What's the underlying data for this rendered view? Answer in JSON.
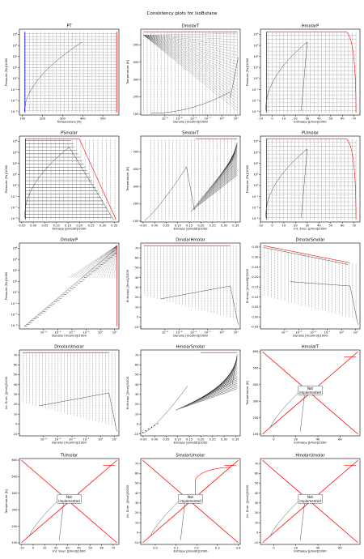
{
  "suptitle": "Consistency plots for IsoButane",
  "notimpl_line1": "Not",
  "notimpl_line2": "implemented",
  "colors": {
    "bubble": "#0000ff",
    "dew": "#ff0000",
    "iso": "#000000",
    "series": "#333333"
  },
  "chart_data": [
    {
      "type": "line",
      "title": "PT",
      "xlabel": "Temperature [K]",
      "ylabel": "Pressure [Pa]/1000",
      "xlim": [
        85,
        580
      ],
      "xscale": "linear",
      "xticks": [
        100,
        200,
        300,
        400,
        500
      ],
      "ylim": [
        0.0005,
        30000
      ],
      "yscale": "log",
      "yticks": [
        0.001,
        0.01,
        0.1,
        1,
        10,
        100,
        1000,
        10000
      ],
      "ytick_labels": [
        "10⁻³",
        "10⁻²",
        "10⁻¹",
        "10⁰",
        "10¹",
        "10²",
        "10³",
        "10⁴"
      ],
      "pattern": "pt"
    },
    {
      "type": "line",
      "title": "DmolarT",
      "xlabel": "Density [mol/m3]/1000",
      "ylabel": "Temperature [K]",
      "xlim": [
        2e-06,
        20
      ],
      "xscale": "log",
      "xticks": [
        0.0001,
        0.001,
        0.01,
        0.1,
        1,
        10
      ],
      "xtick_labels": [
        "10⁻⁴",
        "10⁻³",
        "10⁻²",
        "10⁻¹",
        "10⁰",
        "10¹"
      ],
      "ylim": [
        95,
        590
      ],
      "yscale": "linear",
      "yticks": [
        100,
        200,
        300,
        400,
        500
      ],
      "pattern": "dmolart"
    },
    {
      "type": "line",
      "title": "HmolarP",
      "xlabel": "Enthalpy [J/mol]/1000",
      "ylabel": "Pressure [Pa]/1000",
      "xlim": [
        -10,
        75
      ],
      "xscale": "linear",
      "xticks": [
        -10,
        0,
        10,
        20,
        30,
        40,
        50,
        60,
        70
      ],
      "ylim": [
        0.0005,
        30000
      ],
      "yscale": "log",
      "yticks": [
        0.001,
        0.01,
        0.1,
        1,
        10,
        100,
        1000,
        10000
      ],
      "ytick_labels": [
        "10⁻³",
        "10⁻²",
        "10⁻¹",
        "10⁰",
        "10¹",
        "10²",
        "10³",
        "10⁴"
      ],
      "pattern": "hp"
    },
    {
      "type": "line",
      "title": "PSmolar",
      "xlabel": "Entropy [J/mol/K]/1000",
      "ylabel": "Pressure [Pa]/1000",
      "xlim": [
        -0.06,
        0.37
      ],
      "xscale": "linear",
      "xticks": [
        -0.05,
        0.0,
        0.05,
        0.1,
        0.15,
        0.2,
        0.25,
        0.3,
        0.35
      ],
      "xtick_labels": [
        "-0.05",
        "0.00",
        "0.05",
        "0.10",
        "0.15",
        "0.20",
        "0.25",
        "0.30",
        "0.35"
      ],
      "ylim": [
        0.0005,
        30000
      ],
      "yscale": "log",
      "yticks": [
        0.001,
        0.01,
        0.1,
        1,
        10,
        100,
        1000,
        10000
      ],
      "ytick_labels": [
        "10⁻³",
        "10⁻²",
        "10⁻¹",
        "10⁰",
        "10¹",
        "10²",
        "10³",
        "10⁴"
      ],
      "pattern": "ps"
    },
    {
      "type": "line",
      "title": "SmolarT",
      "xlabel": "Entropy [J/mol/K]/1000",
      "ylabel": "Temperature [K]",
      "xlim": [
        -0.06,
        0.37
      ],
      "xscale": "linear",
      "xticks": [
        -0.05,
        0.0,
        0.05,
        0.1,
        0.15,
        0.2,
        0.25,
        0.3,
        0.35
      ],
      "xtick_labels": [
        "-0.05",
        "0.00",
        "0.05",
        "0.10",
        "0.15",
        "0.20",
        "0.25",
        "0.30",
        "0.35"
      ],
      "ylim": [
        95,
        590
      ],
      "yscale": "linear",
      "yticks": [
        100,
        200,
        300,
        400,
        500
      ],
      "pattern": "st"
    },
    {
      "type": "line",
      "title": "PUmolar",
      "xlabel": "Int. Ener. [J/mol]/1000",
      "ylabel": "Pressure [Pa]/1000",
      "xlim": [
        -10,
        75
      ],
      "xscale": "linear",
      "xticks": [
        -10,
        0,
        10,
        20,
        30,
        40,
        50,
        60,
        70
      ],
      "ylim": [
        0.0005,
        30000
      ],
      "yscale": "log",
      "yticks": [
        0.001,
        0.01,
        0.1,
        1,
        10,
        100,
        1000,
        10000
      ],
      "ytick_labels": [
        "10⁻³",
        "10⁻²",
        "10⁻¹",
        "10⁰",
        "10¹",
        "10²",
        "10³",
        "10⁴"
      ],
      "pattern": "hp"
    },
    {
      "type": "line",
      "title": "DmolarP",
      "xlabel": "Density [mol/m3]/1000",
      "ylabel": "Pressure [Pa]/1000",
      "xlim": [
        2e-06,
        20
      ],
      "xscale": "log",
      "xticks": [
        0.0001,
        0.001,
        0.01,
        0.1,
        1,
        10
      ],
      "xtick_labels": [
        "10⁻⁴",
        "10⁻³",
        "10⁻²",
        "10⁻¹",
        "10⁰",
        "10¹"
      ],
      "ylim": [
        0.0005,
        30000
      ],
      "yscale": "log",
      "yticks": [
        0.001,
        0.01,
        0.1,
        1,
        10,
        100,
        1000,
        10000
      ],
      "ytick_labels": [
        "10⁻³",
        "10⁻²",
        "10⁻¹",
        "10⁰",
        "10¹",
        "10²",
        "10³",
        "10⁴"
      ],
      "pattern": "dp"
    },
    {
      "type": "line",
      "title": "DmolarHmolar",
      "xlabel": "Density [mol/m3]/1000",
      "ylabel": "Enthalpy [J/mol]/1000",
      "xlim": [
        2e-06,
        20
      ],
      "xscale": "log",
      "xticks": [
        0.0001,
        0.001,
        0.01,
        0.1,
        1,
        10
      ],
      "xtick_labels": [
        "10⁻⁴",
        "10⁻³",
        "10⁻²",
        "10⁻¹",
        "10⁰",
        "10¹"
      ],
      "ylim": [
        -12,
        75
      ],
      "yscale": "linear",
      "yticks": [
        -10,
        0,
        10,
        20,
        30,
        40,
        50,
        60,
        70
      ],
      "pattern": "dh"
    },
    {
      "type": "line",
      "title": "DmolarSmolar",
      "xlabel": "Density [mol/m3]/1000",
      "ylabel": "Entropy [J/mol/K]/1000",
      "xlim": [
        2e-06,
        20
      ],
      "xscale": "log",
      "xticks": [
        0.0001,
        0.001,
        0.01,
        0.1,
        1,
        10
      ],
      "xtick_labels": [
        "10⁻⁴",
        "10⁻³",
        "10⁻²",
        "10⁻¹",
        "10⁰",
        "10¹"
      ],
      "ylim": [
        -0.06,
        0.37
      ],
      "yscale": "linear",
      "yticks": [
        -0.05,
        0.0,
        0.05,
        0.1,
        0.15,
        0.2,
        0.25,
        0.3,
        0.35
      ],
      "ytick_labels": [
        "-0.05",
        "0.00",
        "0.05",
        "0.10",
        "0.15",
        "0.20",
        "0.25",
        "0.30",
        "0.35"
      ],
      "pattern": "ds"
    },
    {
      "type": "line",
      "title": "DmolarUmolar",
      "xlabel": "Density [mol/m3]/1000",
      "ylabel": "Int. Ener. [J/mol]/1000",
      "xlim": [
        2e-06,
        20
      ],
      "xscale": "log",
      "xticks": [
        0.0001,
        0.001,
        0.01,
        0.1,
        1,
        10
      ],
      "xtick_labels": [
        "10⁻⁴",
        "10⁻³",
        "10⁻²",
        "10⁻¹",
        "10⁰",
        "10¹"
      ],
      "ylim": [
        -12,
        75
      ],
      "yscale": "linear",
      "yticks": [
        -10,
        0,
        10,
        20,
        30,
        40,
        50,
        60,
        70
      ],
      "pattern": "dh"
    },
    {
      "type": "line",
      "title": "HmolarSmolar",
      "xlabel": "Entropy [J/mol/K]/1000",
      "ylabel": "Enthalpy [J/mol]/1000",
      "xlim": [
        -0.06,
        0.37
      ],
      "xscale": "linear",
      "xticks": [
        -0.05,
        0.0,
        0.05,
        0.1,
        0.15,
        0.2,
        0.25,
        0.3,
        0.35
      ],
      "xtick_labels": [
        "-0.05",
        "0.00",
        "0.05",
        "0.10",
        "0.15",
        "0.20",
        "0.25",
        "0.30",
        "0.35"
      ],
      "ylim": [
        -12,
        75
      ],
      "yscale": "linear",
      "yticks": [
        -10,
        0,
        10,
        20,
        30,
        40,
        50,
        60,
        70
      ],
      "pattern": "hs"
    },
    {
      "type": "line",
      "title": "HmolarT",
      "xlabel": "Enthalpy [J/mol]/1000",
      "ylabel": "Temperature [K]",
      "xlim": [
        -12,
        78
      ],
      "xscale": "linear",
      "xticks": [
        0,
        20,
        40,
        60
      ],
      "ylim": [
        90,
        610
      ],
      "yscale": "linear",
      "yticks": [
        100,
        200,
        300,
        400,
        500,
        600
      ],
      "pattern": "notimpl"
    },
    {
      "type": "line",
      "title": "TUmolar",
      "xlabel": "Int. Ener. [J/mol]/1000",
      "ylabel": "Temperature [K]",
      "xlim": [
        -12,
        75
      ],
      "xscale": "linear",
      "xticks": [
        -10,
        0,
        10,
        20,
        30,
        40,
        50,
        60,
        70
      ],
      "ylim": [
        90,
        610
      ],
      "yscale": "linear",
      "yticks": [
        100,
        200,
        300,
        400,
        500,
        600
      ],
      "pattern": "notimpl"
    },
    {
      "type": "line",
      "title": "SmolarUmolar",
      "xlabel": "Entropy [J/mol/K]/1000",
      "ylabel": "Int. Ener. [J/mol]/1000",
      "xlim": [
        -0.07,
        0.41
      ],
      "xscale": "linear",
      "xticks": [
        0.0,
        0.1,
        0.2,
        0.3,
        0.4
      ],
      "xtick_labels": [
        "0.0",
        "0.1",
        "0.2",
        "0.3",
        "0.4"
      ],
      "ylim": [
        -12,
        75
      ],
      "yscale": "linear",
      "yticks": [
        -10,
        0,
        10,
        20,
        30,
        40,
        50,
        60,
        70
      ],
      "pattern": "notimpl_su"
    },
    {
      "type": "line",
      "title": "HmolarUmolar",
      "xlabel": "Enthalpy [J/mol]/1000",
      "ylabel": "Int. Ener. [J/mol]/1000",
      "xlim": [
        -12,
        78
      ],
      "xscale": "linear",
      "xticks": [
        0,
        20,
        40,
        60
      ],
      "ylim": [
        -12,
        75
      ],
      "yscale": "linear",
      "yticks": [
        -10,
        0,
        10,
        20,
        30,
        40,
        50,
        60,
        70
      ],
      "pattern": "notimpl"
    }
  ]
}
